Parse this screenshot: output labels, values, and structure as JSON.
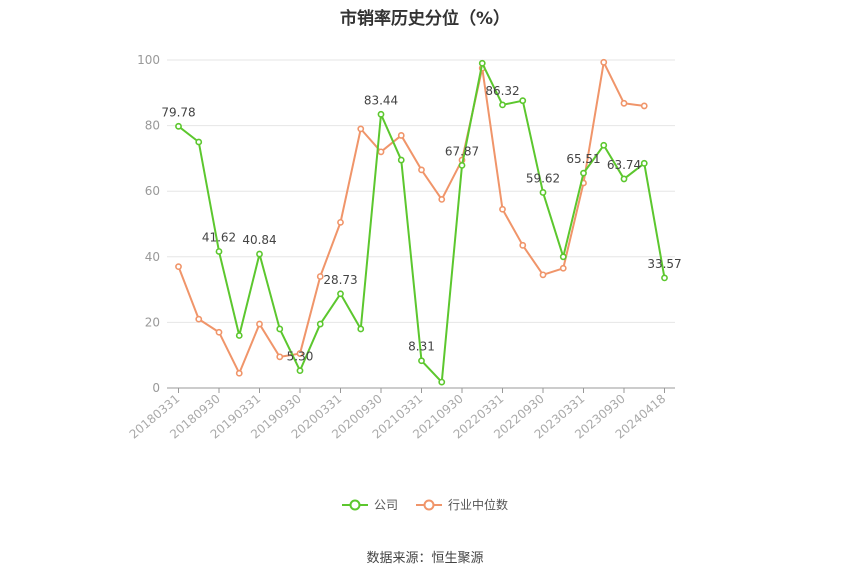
{
  "chart_data": {
    "type": "line",
    "title": "市销率历史分位（%）",
    "source": "数据来源：恒生聚源",
    "ylim": [
      0,
      100
    ],
    "yticks": [
      "0",
      "20",
      "40",
      "60",
      "80",
      "100"
    ],
    "xtick_labels": [
      "20180331",
      "20180930",
      "20190331",
      "20190930",
      "20200331",
      "20200930",
      "20210331",
      "20210930",
      "20220331",
      "20220930",
      "20230331",
      "20230930",
      "20240418"
    ],
    "series": [
      {
        "name": "公司",
        "color": "#5cc72e",
        "values": [
          79.78,
          75.0,
          41.62,
          16.0,
          40.84,
          18.0,
          5.3,
          19.5,
          28.73,
          18.0,
          83.44,
          69.5,
          8.31,
          1.8,
          67.87,
          99.0,
          86.32,
          87.6,
          59.62,
          40.0,
          65.51,
          74.0,
          63.74,
          68.5,
          33.57
        ],
        "labels": {
          "0": "79.78",
          "2": "41.62",
          "4": "40.84",
          "6": "5.30",
          "8": "28.73",
          "10": "83.44",
          "12": "8.31",
          "14": "67.87",
          "16": "86.32",
          "18": "59.62",
          "20": "65.51",
          "22": "63.74",
          "24": "33.57"
        }
      },
      {
        "name": "行业中位数",
        "color": "#f0956a",
        "values": [
          37.0,
          21.0,
          17.0,
          4.5,
          19.5,
          9.5,
          10.5,
          34.0,
          50.5,
          79.0,
          72.0,
          77.0,
          66.5,
          57.5,
          69.5,
          97.5,
          54.5,
          43.5,
          34.5,
          36.5,
          62.5,
          99.3,
          86.8,
          86.0
        ]
      }
    ]
  }
}
